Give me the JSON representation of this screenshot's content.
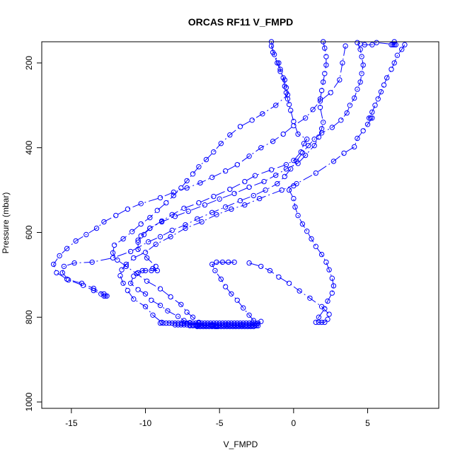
{
  "chart_data": {
    "type": "scatter",
    "title": "ORCAS RF11 V_FMPD",
    "xlabel": "V_FMPD",
    "ylabel": "Pressure (mbar)",
    "xlim": [
      -17.0,
      9.8
    ],
    "ylim": [
      1015,
      150
    ],
    "y_reversed": true,
    "x_ticks": [
      -15,
      -10,
      -5,
      0,
      5
    ],
    "y_ticks": [
      200,
      400,
      600,
      800,
      1000
    ],
    "grid": false,
    "legend": "none",
    "series_color": "#0000ff",
    "line_style": "dash-dot",
    "marker": "open-circle",
    "series": [
      {
        "values": [
          [
            7.5,
            157
          ],
          [
            7.3,
            168
          ],
          [
            7.0,
            182
          ],
          [
            6.8,
            200
          ],
          [
            6.6,
            215
          ],
          [
            6.3,
            235
          ],
          [
            6.1,
            252
          ],
          [
            5.9,
            268
          ],
          [
            5.7,
            285
          ],
          [
            5.5,
            300
          ],
          [
            5.3,
            316
          ],
          [
            5.1,
            330
          ],
          [
            5.2,
            330
          ],
          [
            5.3,
            330
          ],
          [
            5.0,
            345
          ],
          [
            4.7,
            360
          ],
          [
            4.3,
            378
          ],
          [
            4.1,
            398
          ],
          [
            3.4,
            413
          ],
          [
            2.7,
            432
          ],
          [
            1.5,
            460
          ],
          [
            0.2,
            485
          ],
          [
            -0.8,
            500
          ],
          [
            -2.3,
            520
          ],
          [
            -3.3,
            535
          ],
          [
            -4.2,
            545
          ],
          [
            -5.2,
            558
          ],
          [
            -6.2,
            575
          ],
          [
            -7.3,
            590
          ],
          [
            -8.3,
            610
          ],
          [
            -9.3,
            628
          ],
          [
            -10.0,
            647
          ],
          [
            -10.8,
            660
          ],
          [
            -11.3,
            675
          ],
          [
            -11.6,
            688
          ],
          [
            -11.7,
            702
          ],
          [
            -11.5,
            720
          ],
          [
            -11.2,
            737
          ],
          [
            -10.8,
            757
          ],
          [
            -10.0,
            775
          ],
          [
            -9.5,
            795
          ],
          [
            -8.9,
            812
          ],
          [
            -7.5,
            815
          ],
          [
            -6.5,
            818
          ],
          [
            -5.5,
            818
          ],
          [
            -4.5,
            818
          ],
          [
            -3.5,
            818
          ],
          [
            -2.5,
            816
          ],
          [
            -2.2,
            810
          ]
        ]
      },
      {
        "values": [
          [
            -1.5,
            160
          ],
          [
            -1.3,
            180
          ],
          [
            -1.0,
            200
          ],
          [
            -0.9,
            215
          ],
          [
            -0.7,
            235
          ],
          [
            -0.6,
            255
          ],
          [
            -0.5,
            270
          ],
          [
            -0.4,
            285
          ],
          [
            -0.3,
            298
          ],
          [
            -0.2,
            312
          ],
          [
            0.0,
            338
          ],
          [
            0.3,
            368
          ],
          [
            0.9,
            380
          ],
          [
            0.7,
            390
          ],
          [
            0.5,
            410
          ],
          [
            0.0,
            430
          ],
          [
            -0.5,
            440
          ],
          [
            -1.5,
            452
          ],
          [
            -2.6,
            466
          ],
          [
            -3.3,
            480
          ],
          [
            -4.3,
            498
          ],
          [
            -5.4,
            515
          ],
          [
            -6.4,
            530
          ],
          [
            -7.4,
            543
          ],
          [
            -8.2,
            558
          ],
          [
            -8.9,
            573
          ],
          [
            -9.7,
            590
          ],
          [
            -10.3,
            608
          ],
          [
            -10.5,
            623
          ],
          [
            -10.5,
            640
          ],
          [
            -9.9,
            660
          ],
          [
            -9.3,
            680
          ],
          [
            -9.5,
            685
          ],
          [
            -9.2,
            690
          ],
          [
            -9.6,
            690
          ],
          [
            -10.0,
            690
          ],
          [
            -10.2,
            690
          ],
          [
            -10.5,
            695
          ],
          [
            -10.8,
            703
          ],
          [
            -11.0,
            720
          ],
          [
            -10.5,
            735
          ],
          [
            -10.0,
            745
          ],
          [
            -9.6,
            760
          ],
          [
            -9.0,
            772
          ],
          [
            -8.5,
            785
          ],
          [
            -7.8,
            798
          ],
          [
            -7.4,
            808
          ],
          [
            -7.0,
            813
          ],
          [
            -6.5,
            820
          ],
          [
            -5.5,
            820
          ],
          [
            -4.0,
            820
          ],
          [
            -3.0,
            820
          ],
          [
            -2.5,
            820
          ]
        ]
      },
      {
        "values": [
          [
            6.8,
            150
          ],
          [
            6.8,
            157
          ],
          [
            6.7,
            157
          ],
          [
            6.6,
            157
          ],
          [
            6.9,
            157
          ],
          [
            5.6,
            152
          ],
          [
            5.3,
            157
          ],
          [
            4.8,
            157
          ],
          [
            4.5,
            155
          ],
          [
            4.3,
            152
          ],
          [
            4.5,
            168
          ],
          [
            4.6,
            185
          ],
          [
            4.7,
            205
          ],
          [
            4.6,
            225
          ],
          [
            4.5,
            245
          ],
          [
            4.3,
            262
          ],
          [
            4.1,
            283
          ],
          [
            3.8,
            300
          ],
          [
            3.6,
            318
          ],
          [
            3.2,
            335
          ],
          [
            2.6,
            352
          ],
          [
            1.9,
            365
          ],
          [
            1.4,
            380
          ],
          [
            1.0,
            395
          ],
          [
            0.6,
            412
          ],
          [
            0.2,
            432
          ],
          [
            -0.2,
            450
          ],
          [
            -0.6,
            468
          ],
          [
            -1.1,
            485
          ],
          [
            -1.9,
            500
          ],
          [
            -2.7,
            513
          ],
          [
            -3.6,
            525
          ],
          [
            -4.6,
            540
          ],
          [
            -5.5,
            553
          ],
          [
            -6.5,
            568
          ],
          [
            -7.3,
            582
          ],
          [
            -8.2,
            595
          ],
          [
            -9.0,
            610
          ],
          [
            -9.8,
            622
          ],
          [
            -11.0,
            645
          ],
          [
            -12.2,
            660
          ],
          [
            -13.6,
            670
          ],
          [
            -14.8,
            672
          ],
          [
            -15.5,
            680
          ],
          [
            -15.6,
            695
          ],
          [
            -15.2,
            712
          ],
          [
            -14.2,
            725
          ],
          [
            -13.5,
            737
          ],
          [
            -13.0,
            745
          ],
          [
            -12.8,
            750
          ],
          [
            -12.6,
            750
          ],
          [
            -12.7,
            750
          ]
        ]
      },
      {
        "values": [
          [
            3.5,
            160
          ],
          [
            3.3,
            200
          ],
          [
            3.1,
            240
          ],
          [
            2.5,
            270
          ],
          [
            1.8,
            290
          ],
          [
            1.3,
            310
          ],
          [
            0.8,
            330
          ],
          [
            0.0,
            348
          ],
          [
            -0.7,
            368
          ],
          [
            -1.4,
            385
          ],
          [
            -2.2,
            400
          ],
          [
            -3.0,
            420
          ],
          [
            -3.8,
            440
          ],
          [
            -4.6,
            455
          ],
          [
            -5.5,
            470
          ],
          [
            -6.3,
            483
          ],
          [
            -7.2,
            495
          ],
          [
            -8.1,
            505
          ],
          [
            -9.0,
            518
          ],
          [
            -10.3,
            532
          ],
          [
            -11.2,
            545
          ],
          [
            -12.0,
            560
          ],
          [
            -12.8,
            575
          ],
          [
            -13.3,
            590
          ],
          [
            -14.0,
            605
          ],
          [
            -14.7,
            620
          ],
          [
            -15.3,
            638
          ],
          [
            -15.8,
            655
          ],
          [
            -16.2,
            675
          ],
          [
            -16.0,
            695
          ],
          [
            -15.3,
            710
          ],
          [
            -14.3,
            720
          ],
          [
            -13.5,
            732
          ],
          [
            -12.8,
            745
          ]
        ]
      },
      {
        "values": [
          [
            -1.5,
            150
          ],
          [
            -1.4,
            175
          ],
          [
            -1.1,
            200
          ],
          [
            -0.9,
            220
          ],
          [
            -0.6,
            240
          ],
          [
            -0.5,
            258
          ],
          [
            -0.4,
            275
          ],
          [
            -1.2,
            300
          ],
          [
            -2.1,
            320
          ],
          [
            -2.8,
            335
          ],
          [
            -3.6,
            350
          ],
          [
            -4.3,
            370
          ],
          [
            -4.9,
            390
          ],
          [
            -5.4,
            410
          ],
          [
            -5.9,
            428
          ],
          [
            -6.4,
            445
          ],
          [
            -6.8,
            462
          ],
          [
            -7.2,
            478
          ],
          [
            -7.6,
            495
          ],
          [
            -8.1,
            513
          ],
          [
            -8.6,
            530
          ],
          [
            -9.2,
            548
          ],
          [
            -9.7,
            565
          ],
          [
            -10.3,
            580
          ],
          [
            -10.9,
            598
          ],
          [
            -11.5,
            615
          ],
          [
            -12.1,
            630
          ],
          [
            -12.2,
            648
          ],
          [
            -11.9,
            665
          ],
          [
            -11.3,
            680
          ],
          [
            -10.6,
            697
          ],
          [
            -9.9,
            715
          ],
          [
            -9.0,
            733
          ],
          [
            -8.3,
            752
          ],
          [
            -7.6,
            770
          ],
          [
            -7.2,
            788
          ],
          [
            -6.8,
            800
          ],
          [
            -6.4,
            812
          ],
          [
            -6.0,
            820
          ],
          [
            -5.2,
            822
          ]
        ]
      },
      {
        "values": [
          [
            -5.2,
            670
          ],
          [
            -4.8,
            670
          ],
          [
            -4.4,
            670
          ],
          [
            -4.0,
            670
          ],
          [
            -5.5,
            675
          ],
          [
            -5.3,
            690
          ],
          [
            -4.9,
            710
          ],
          [
            -4.6,
            728
          ],
          [
            -4.2,
            745
          ],
          [
            -3.8,
            760
          ],
          [
            -3.4,
            778
          ],
          [
            -3.0,
            795
          ],
          [
            -2.7,
            808
          ]
        ]
      },
      {
        "values": [
          [
            -3.0,
            672
          ],
          [
            -2.2,
            680
          ],
          [
            -1.6,
            690
          ],
          [
            -1.0,
            705
          ],
          [
            -0.3,
            720
          ],
          [
            0.4,
            738
          ],
          [
            1.1,
            755
          ],
          [
            1.9,
            775
          ],
          [
            2.4,
            793
          ],
          [
            2.3,
            805
          ],
          [
            2.1,
            812
          ],
          [
            1.9,
            812
          ],
          [
            1.7,
            812
          ],
          [
            1.5,
            812
          ],
          [
            1.7,
            800
          ],
          [
            2.1,
            780
          ],
          [
            2.3,
            762
          ],
          [
            2.6,
            743
          ],
          [
            2.7,
            726
          ],
          [
            2.6,
            708
          ],
          [
            2.4,
            688
          ],
          [
            2.2,
            670
          ],
          [
            1.9,
            652
          ],
          [
            1.5,
            633
          ],
          [
            1.2,
            615
          ],
          [
            0.9,
            597
          ],
          [
            0.6,
            580
          ],
          [
            0.3,
            560
          ],
          [
            0.1,
            540
          ],
          [
            0.0,
            520
          ],
          [
            -0.3,
            500
          ],
          [
            0.0,
            490
          ]
        ]
      },
      {
        "values": [
          [
            2.0,
            150
          ],
          [
            2.1,
            165
          ],
          [
            2.2,
            185
          ],
          [
            2.2,
            205
          ],
          [
            2.1,
            225
          ],
          [
            2.0,
            245
          ],
          [
            1.9,
            265
          ],
          [
            1.8,
            285
          ],
          [
            1.8,
            305
          ],
          [
            2.0,
            340
          ],
          [
            1.9,
            355
          ],
          [
            1.7,
            375
          ],
          [
            1.4,
            395
          ],
          [
            0.8,
            418
          ],
          [
            0.3,
            437
          ],
          [
            -0.5,
            450
          ],
          [
            -1.2,
            465
          ],
          [
            -2.0,
            480
          ],
          [
            -3.0,
            493
          ],
          [
            -4.0,
            508
          ],
          [
            -5.0,
            521
          ],
          [
            -6.0,
            535
          ],
          [
            -7.1,
            550
          ],
          [
            -8.0,
            562
          ],
          [
            -8.9,
            575
          ],
          [
            -9.7,
            590
          ],
          [
            -10.1,
            605
          ],
          [
            -10.5,
            618
          ]
        ]
      }
    ],
    "flat_bottom": {
      "y": [
        814,
        818,
        820,
        822
      ],
      "x_start": [
        -9.0,
        -8.0,
        -7.0,
        -6.5
      ],
      "x_end": [
        -2.4,
        -2.5,
        -2.4,
        -2.6
      ],
      "step": 0.2
    }
  }
}
